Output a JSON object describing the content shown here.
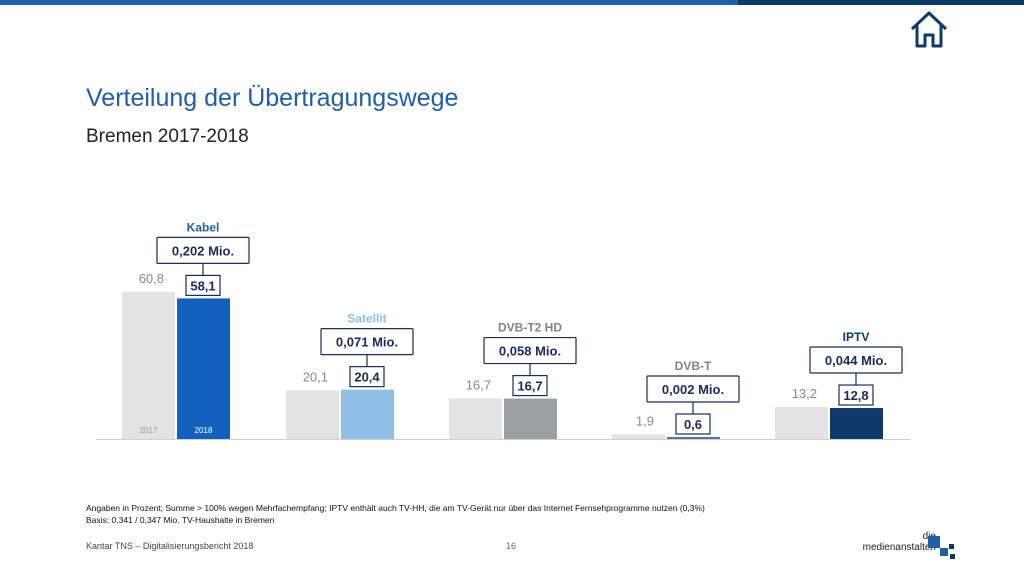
{
  "header": {
    "title": "Verteilung der Übertragungswege",
    "subtitle": "Bremen 2017-2018",
    "home_icon": "home-icon",
    "colors": {
      "bar_primary": "#1f5fa8",
      "bar_dark": "#0d3a6b"
    }
  },
  "chart_data": {
    "type": "bar",
    "title": "",
    "xlabel": "",
    "ylabel": "",
    "ylim": [
      0,
      65
    ],
    "grid": false,
    "legend_inside_first_group": [
      "2017",
      "2018"
    ],
    "groups": [
      {
        "name": "Kabel",
        "callout": "0,202 Mio.",
        "values": [
          60.8,
          58.1
        ],
        "labels": [
          "60,8",
          "58,1"
        ],
        "color2018": "#1261be",
        "nameColor": "#1f5fa8"
      },
      {
        "name": "Satellit",
        "callout": "0,071 Mio.",
        "values": [
          20.1,
          20.4
        ],
        "labels": [
          "20,1",
          "20,4"
        ],
        "color2018": "#8ec0ea",
        "nameColor": "#8ec0ea"
      },
      {
        "name": "DVB-T2 HD",
        "callout": "0,058 Mio.",
        "values": [
          16.7,
          16.7
        ],
        "labels": [
          "16,7",
          "16,7"
        ],
        "color2018": "#9aa0a3",
        "nameColor": "#7f8589"
      },
      {
        "name": "DVB-T",
        "callout": "0,002 Mio.",
        "values": [
          1.9,
          0.6
        ],
        "labels": [
          "1,9",
          "0,6"
        ],
        "color2018": "#4a78b0",
        "nameColor": "#7f8589"
      },
      {
        "name": "IPTV",
        "callout": "0,044 Mio.",
        "values": [
          13.2,
          12.8
        ],
        "labels": [
          "13,2",
          "12,8"
        ],
        "color2018": "#0d3a6b",
        "nameColor": "#0d3a6b"
      }
    ],
    "color2017": "#e3e3e3"
  },
  "footnote": {
    "line1": "Angaben in Prozent; Summe > 100% wegen Mehrfachempfang; IPTV enthält auch TV-HH, die am TV-Gerät nur über das Internet Fernsehprogramme nutzen (0,3%)",
    "line2": "Basis: 0,341 / 0,347 Mio. TV-Haushalte in Bremen"
  },
  "footer": {
    "source": "Kantar TNS – Digitalisierungsbericht 2018",
    "page": "16",
    "brand_line1": "die",
    "brand_line2": "medienanstalten"
  }
}
